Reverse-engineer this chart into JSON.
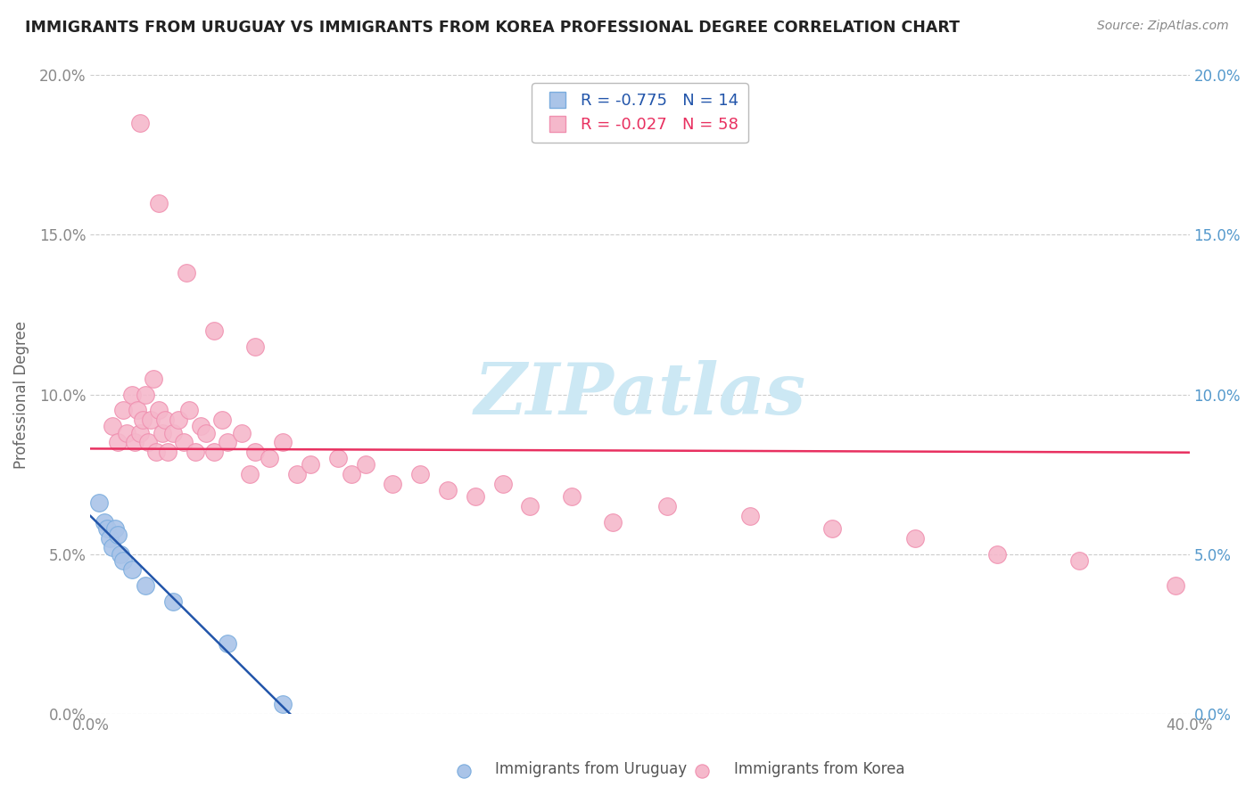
{
  "title": "IMMIGRANTS FROM URUGUAY VS IMMIGRANTS FROM KOREA PROFESSIONAL DEGREE CORRELATION CHART",
  "source": "Source: ZipAtlas.com",
  "ylabel": "Professional Degree",
  "legend_R_uruguay": "-0.775",
  "legend_N_uruguay": "14",
  "legend_R_korea": "-0.027",
  "legend_N_korea": "58",
  "uruguay_color": "#aac4e8",
  "korea_color": "#f5b8cb",
  "uruguay_edge_color": "#7aacde",
  "korea_edge_color": "#f090b0",
  "uruguay_line_color": "#2255aa",
  "korea_line_color": "#e83060",
  "watermark_color": "#cce8f4",
  "background_color": "#ffffff",
  "grid_color": "#cccccc",
  "xlim": [
    0.0,
    0.4
  ],
  "ylim": [
    0.0,
    0.2
  ],
  "yticks": [
    0.0,
    0.05,
    0.1,
    0.15,
    0.2
  ],
  "title_color": "#222222",
  "source_color": "#888888",
  "tick_color": "#888888",
  "right_tick_color": "#5599cc",
  "uruguay_x": [
    0.003,
    0.005,
    0.006,
    0.007,
    0.008,
    0.009,
    0.01,
    0.011,
    0.012,
    0.015,
    0.02,
    0.03,
    0.05,
    0.07
  ],
  "uruguay_y": [
    0.066,
    0.06,
    0.058,
    0.055,
    0.052,
    0.058,
    0.056,
    0.05,
    0.048,
    0.045,
    0.04,
    0.035,
    0.022,
    0.003
  ],
  "korea_x": [
    0.008,
    0.01,
    0.012,
    0.013,
    0.015,
    0.016,
    0.017,
    0.018,
    0.019,
    0.02,
    0.021,
    0.022,
    0.023,
    0.024,
    0.025,
    0.026,
    0.027,
    0.028,
    0.03,
    0.032,
    0.034,
    0.036,
    0.038,
    0.04,
    0.042,
    0.045,
    0.048,
    0.05,
    0.055,
    0.058,
    0.06,
    0.065,
    0.07,
    0.075,
    0.08,
    0.09,
    0.095,
    0.1,
    0.11,
    0.12,
    0.13,
    0.14,
    0.15,
    0.16,
    0.175,
    0.19,
    0.21,
    0.24,
    0.27,
    0.3,
    0.33,
    0.36,
    0.395,
    0.018,
    0.025,
    0.035,
    0.045,
    0.06
  ],
  "korea_y": [
    0.09,
    0.085,
    0.095,
    0.088,
    0.1,
    0.085,
    0.095,
    0.088,
    0.092,
    0.1,
    0.085,
    0.092,
    0.105,
    0.082,
    0.095,
    0.088,
    0.092,
    0.082,
    0.088,
    0.092,
    0.085,
    0.095,
    0.082,
    0.09,
    0.088,
    0.082,
    0.092,
    0.085,
    0.088,
    0.075,
    0.082,
    0.08,
    0.085,
    0.075,
    0.078,
    0.08,
    0.075,
    0.078,
    0.072,
    0.075,
    0.07,
    0.068,
    0.072,
    0.065,
    0.068,
    0.06,
    0.065,
    0.062,
    0.058,
    0.055,
    0.05,
    0.048,
    0.04,
    0.185,
    0.16,
    0.138,
    0.12,
    0.115
  ]
}
